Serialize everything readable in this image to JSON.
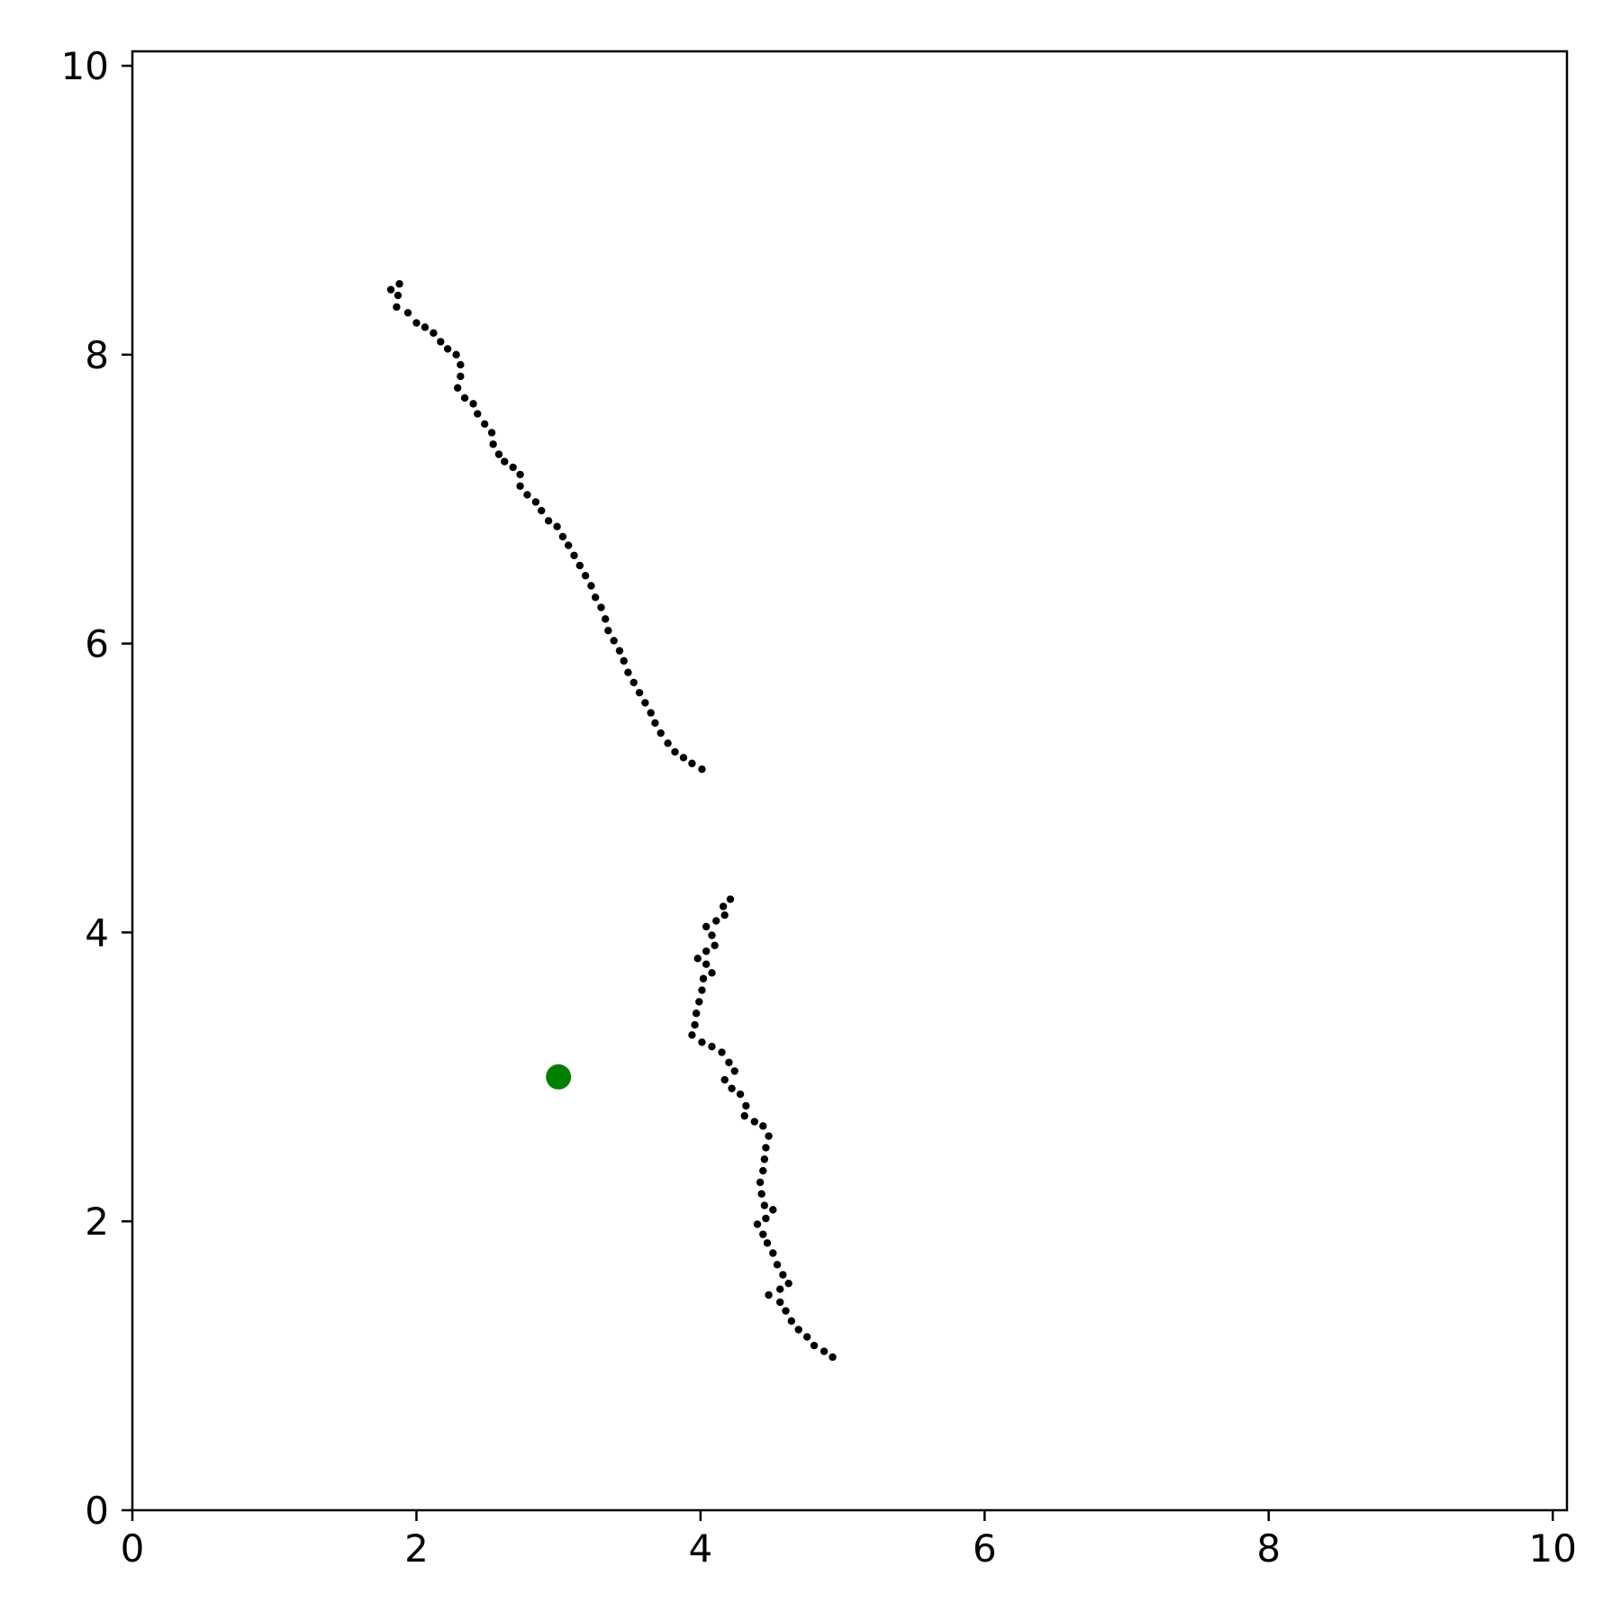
{
  "chart_data": {
    "type": "scatter",
    "title": "",
    "xlabel": "",
    "ylabel": "",
    "xlim": [
      0,
      10.1
    ],
    "ylim": [
      0,
      10.1
    ],
    "grid": false,
    "legend": "none",
    "x_ticks": [
      0,
      2,
      4,
      6,
      8,
      10
    ],
    "y_ticks": [
      0,
      2,
      4,
      6,
      8,
      10
    ],
    "x_tick_labels": [
      "0",
      "2",
      "4",
      "6",
      "8",
      "10"
    ],
    "y_tick_labels": [
      "0",
      "2",
      "4",
      "6",
      "8",
      "10"
    ],
    "series": [
      {
        "marker": "small-dot",
        "color": "#000000",
        "points": [
          [
            1.82,
            8.45
          ],
          [
            1.88,
            8.49
          ],
          [
            1.87,
            8.41
          ],
          [
            1.86,
            8.33
          ],
          [
            1.94,
            8.29
          ],
          [
            2.0,
            8.22
          ],
          [
            2.06,
            8.19
          ],
          [
            2.12,
            8.15
          ],
          [
            2.17,
            8.09
          ],
          [
            2.22,
            8.04
          ],
          [
            2.28,
            8.0
          ],
          [
            2.31,
            7.93
          ],
          [
            2.31,
            7.85
          ],
          [
            2.29,
            7.77
          ],
          [
            2.34,
            7.7
          ],
          [
            2.4,
            7.66
          ],
          [
            2.43,
            7.59
          ],
          [
            2.48,
            7.52
          ],
          [
            2.53,
            7.46
          ],
          [
            2.54,
            7.38
          ],
          [
            2.58,
            7.31
          ],
          [
            2.62,
            7.26
          ],
          [
            2.68,
            7.22
          ],
          [
            2.73,
            7.17
          ],
          [
            2.73,
            7.09
          ],
          [
            2.78,
            7.03
          ],
          [
            2.84,
            6.98
          ],
          [
            2.88,
            6.92
          ],
          [
            2.93,
            6.85
          ],
          [
            2.99,
            6.81
          ],
          [
            3.03,
            6.74
          ],
          [
            3.07,
            6.68
          ],
          [
            3.11,
            6.61
          ],
          [
            3.15,
            6.54
          ],
          [
            3.19,
            6.47
          ],
          [
            3.23,
            6.4
          ],
          [
            3.26,
            6.32
          ],
          [
            3.3,
            6.25
          ],
          [
            3.33,
            6.17
          ],
          [
            3.35,
            6.09
          ],
          [
            3.39,
            6.02
          ],
          [
            3.43,
            5.95
          ],
          [
            3.46,
            5.88
          ],
          [
            3.49,
            5.8
          ],
          [
            3.53,
            5.73
          ],
          [
            3.57,
            5.66
          ],
          [
            3.61,
            5.59
          ],
          [
            3.65,
            5.52
          ],
          [
            3.68,
            5.45
          ],
          [
            3.72,
            5.38
          ],
          [
            3.77,
            5.31
          ],
          [
            3.82,
            5.25
          ],
          [
            3.88,
            5.21
          ],
          [
            3.94,
            5.17
          ],
          [
            4.01,
            5.13
          ]
        ]
      },
      {
        "marker": "small-dot",
        "color": "#000000",
        "points": [
          [
            4.21,
            4.23
          ],
          [
            4.16,
            4.18
          ],
          [
            4.17,
            4.12
          ],
          [
            4.11,
            4.08
          ],
          [
            4.04,
            4.04
          ],
          [
            4.08,
            3.98
          ],
          [
            4.1,
            3.91
          ],
          [
            4.04,
            3.87
          ],
          [
            3.98,
            3.82
          ],
          [
            4.04,
            3.78
          ],
          [
            4.08,
            3.72
          ],
          [
            4.02,
            3.68
          ],
          [
            4.01,
            3.6
          ],
          [
            3.99,
            3.52
          ],
          [
            3.97,
            3.44
          ],
          [
            3.96,
            3.36
          ],
          [
            3.94,
            3.29
          ],
          [
            4.01,
            3.24
          ],
          [
            4.08,
            3.21
          ],
          [
            4.15,
            3.17
          ],
          [
            4.2,
            3.1
          ],
          [
            4.24,
            3.04
          ],
          [
            4.17,
            2.98
          ],
          [
            4.22,
            2.92
          ],
          [
            4.28,
            2.88
          ],
          [
            4.32,
            2.8
          ],
          [
            4.31,
            2.73
          ],
          [
            4.38,
            2.69
          ],
          [
            4.44,
            2.66
          ],
          [
            4.48,
            2.59
          ],
          [
            4.46,
            2.51
          ],
          [
            4.45,
            2.43
          ],
          [
            4.44,
            2.35
          ],
          [
            4.42,
            2.27
          ],
          [
            4.43,
            2.19
          ],
          [
            4.45,
            2.11
          ],
          [
            4.51,
            2.08
          ],
          [
            4.46,
            2.02
          ],
          [
            4.4,
            1.98
          ],
          [
            4.44,
            1.91
          ],
          [
            4.47,
            1.85
          ],
          [
            4.51,
            1.78
          ],
          [
            4.54,
            1.7
          ],
          [
            4.58,
            1.63
          ],
          [
            4.62,
            1.57
          ],
          [
            4.56,
            1.53
          ],
          [
            4.48,
            1.49
          ],
          [
            4.56,
            1.44
          ],
          [
            4.6,
            1.38
          ],
          [
            4.64,
            1.31
          ],
          [
            4.69,
            1.25
          ],
          [
            4.75,
            1.2
          ],
          [
            4.8,
            1.14
          ],
          [
            4.87,
            1.1
          ],
          [
            4.93,
            1.06
          ]
        ]
      },
      {
        "marker": "large-dot",
        "color": "#008000",
        "points": [
          [
            3.0,
            3.0
          ]
        ]
      }
    ]
  }
}
